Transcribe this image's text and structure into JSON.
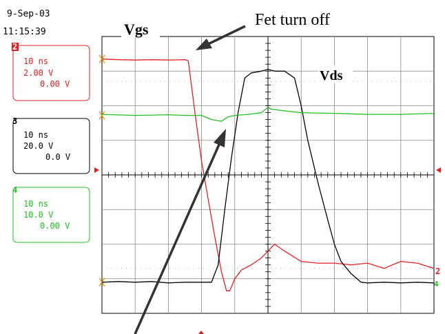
{
  "header": {
    "date": "9-Sep-03",
    "time": "11:15:39"
  },
  "annotations": {
    "vgs_label": "Vgs",
    "vds_label": "Vds",
    "fet_label": "Fet turn off"
  },
  "channels": [
    {
      "number": "2",
      "timebase": "10 ns",
      "volts_per_div": "2.00 V",
      "offset": "0.00 V",
      "color": "#e02020"
    },
    {
      "number": "3",
      "timebase": "10 ns",
      "volts_per_div": "20.0 V",
      "offset": "0.0 V",
      "color": "#000000"
    },
    {
      "number": "4",
      "timebase": "10 ns",
      "volts_per_div": "10.0 V",
      "offset": "0.00 V",
      "color": "#20c020"
    }
  ],
  "chart_data": {
    "type": "line",
    "title": "",
    "xlabel": "",
    "ylabel": "",
    "grid": true,
    "xlim": [
      0,
      10
    ],
    "ylim": [
      -4,
      4
    ],
    "series": [
      {
        "name": "Vgs",
        "color": "#e02020",
        "x": [
          0.0,
          0.5,
          1.0,
          1.5,
          2.0,
          2.5,
          2.6,
          2.8,
          3.0,
          3.2,
          3.4,
          3.6,
          3.75,
          3.85,
          4.0,
          4.2,
          4.5,
          4.8,
          5.0,
          5.2,
          5.5,
          6.0,
          6.5,
          7.0,
          7.5,
          8.0,
          8.5,
          9.0,
          9.5,
          10.0
        ],
        "y": [
          3.35,
          3.33,
          3.32,
          3.33,
          3.32,
          3.33,
          3.3,
          1.8,
          0.4,
          -0.7,
          -1.8,
          -2.8,
          -3.35,
          -3.35,
          -3.0,
          -2.75,
          -2.6,
          -2.4,
          -2.2,
          -2.0,
          -2.2,
          -2.5,
          -2.55,
          -2.55,
          -2.6,
          -2.55,
          -2.7,
          -2.5,
          -2.55,
          -2.7
        ]
      },
      {
        "name": "Vds",
        "color": "#000000",
        "x": [
          0.0,
          0.5,
          1.0,
          1.5,
          2.0,
          2.5,
          3.0,
          3.3,
          3.5,
          3.7,
          3.9,
          4.1,
          4.3,
          4.5,
          4.8,
          5.0,
          5.2,
          5.5,
          5.8,
          6.0,
          6.2,
          6.5,
          6.8,
          7.0,
          7.2,
          7.5,
          7.8,
          8.0,
          8.5,
          9.0,
          9.5,
          10.0
        ],
        "y": [
          -3.1,
          -3.08,
          -3.1,
          -3.08,
          -3.12,
          -3.1,
          -3.1,
          -3.1,
          -2.6,
          -1.0,
          0.5,
          1.8,
          2.8,
          2.95,
          3.0,
          3.05,
          3.0,
          3.0,
          2.8,
          2.0,
          1.0,
          -0.2,
          -1.3,
          -2.0,
          -2.5,
          -2.85,
          -3.1,
          -3.12,
          -3.1,
          -3.12,
          -3.1,
          -3.12
        ]
      },
      {
        "name": "ch4",
        "color": "#20c020",
        "x": [
          0.0,
          1.0,
          2.0,
          2.5,
          3.0,
          3.3,
          3.6,
          3.8,
          4.0,
          4.4,
          4.8,
          5.0,
          5.1,
          5.5,
          6.0,
          7.0,
          8.0,
          9.0,
          10.0
        ],
        "y": [
          1.75,
          1.72,
          1.74,
          1.72,
          1.72,
          1.6,
          1.55,
          1.68,
          1.72,
          1.75,
          1.8,
          1.95,
          1.9,
          1.85,
          1.8,
          1.78,
          1.75,
          1.75,
          1.78
        ]
      }
    ]
  }
}
